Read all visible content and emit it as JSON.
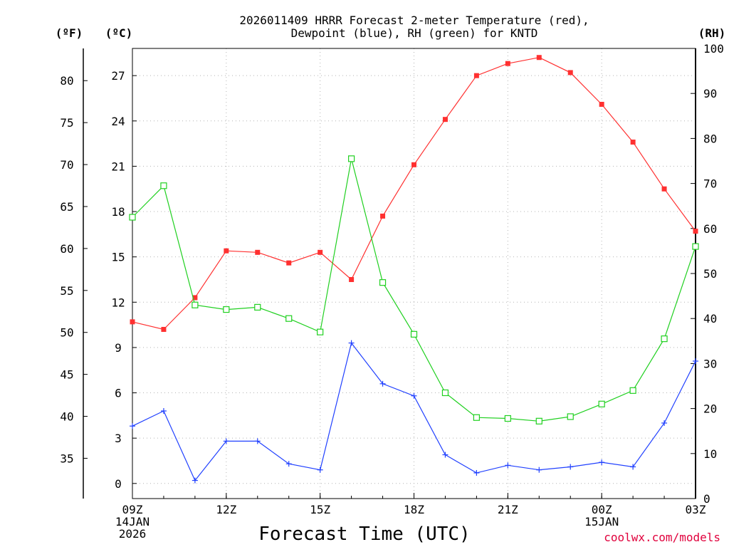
{
  "chart_data": {
    "type": "line",
    "title_line1": "2026011409 HRRR Forecast 2-meter Temperature (red),",
    "title_line2": "Dewpoint (blue), RH (green) for KNTD",
    "xlabel": "Forecast Time (UTC)",
    "credit": "coolwx.com/models",
    "x_hours": [
      0,
      1,
      2,
      3,
      4,
      5,
      6,
      7,
      8,
      9,
      10,
      11,
      12,
      13,
      14,
      15,
      16,
      17,
      18
    ],
    "x_ticks": [
      {
        "hour": 0,
        "lines": [
          "09Z",
          "14JAN",
          "2026"
        ]
      },
      {
        "hour": 3,
        "lines": [
          "12Z"
        ]
      },
      {
        "hour": 6,
        "lines": [
          "15Z"
        ]
      },
      {
        "hour": 9,
        "lines": [
          "18Z"
        ]
      },
      {
        "hour": 12,
        "lines": [
          "21Z"
        ]
      },
      {
        "hour": 15,
        "lines": [
          "00Z",
          "15JAN"
        ]
      },
      {
        "hour": 18,
        "lines": [
          "03Z"
        ]
      }
    ],
    "axes": {
      "f_label": "(ºF)",
      "c_label": "(ºC)",
      "rh_label": "(RH)",
      "celsius_range": [
        -1.0,
        28.8
      ],
      "celsius_ticks": [
        "0",
        "3",
        "6",
        "9",
        "12",
        "15",
        "18",
        "21",
        "24",
        "27"
      ],
      "fahrenheit_ticks": [
        "35",
        "40",
        "45",
        "50",
        "55",
        "60",
        "65",
        "70",
        "75",
        "80"
      ],
      "rh_range": [
        0,
        100
      ],
      "rh_ticks": [
        "0",
        "10",
        "20",
        "30",
        "40",
        "50",
        "60",
        "70",
        "80",
        "90",
        "100"
      ]
    },
    "series": [
      {
        "name": "2-meter Temperature",
        "axis": "celsius",
        "color": "#ff3030",
        "marker": "filled-square",
        "values": [
          10.7,
          10.2,
          12.3,
          15.4,
          15.3,
          14.6,
          15.3,
          13.5,
          17.7,
          21.1,
          24.1,
          27.0,
          27.8,
          28.2,
          27.2,
          25.1,
          22.6,
          19.5,
          16.7
        ]
      },
      {
        "name": "Dewpoint",
        "axis": "celsius",
        "color": "#2040ff",
        "marker": "plus",
        "values": [
          3.8,
          4.8,
          0.2,
          2.8,
          2.8,
          1.3,
          0.9,
          9.3,
          6.6,
          5.8,
          1.9,
          0.7,
          1.2,
          0.9,
          1.1,
          1.4,
          1.1,
          4.0,
          8.1
        ]
      },
      {
        "name": "RH",
        "axis": "rh",
        "color": "#20d020",
        "marker": "open-square",
        "values": [
          62.5,
          69.5,
          43.0,
          42.0,
          42.5,
          40.0,
          37.0,
          75.5,
          48.0,
          36.5,
          23.5,
          18.0,
          17.8,
          17.2,
          18.2,
          21.0,
          24.0,
          35.5,
          56.0
        ]
      }
    ]
  }
}
